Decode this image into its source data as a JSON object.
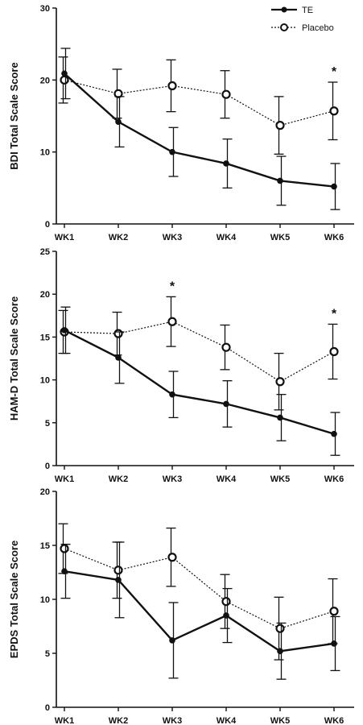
{
  "legend": {
    "position": "top-right",
    "series": [
      {
        "name": "TE",
        "style": "solid",
        "marker": "filled-circle",
        "color": "#111111"
      },
      {
        "name": "Placebo",
        "style": "dotted",
        "marker": "open-circle",
        "color": "#111111"
      }
    ]
  },
  "chart_data": [
    {
      "type": "line",
      "title": "",
      "xlabel": "",
      "ylabel": "BDI Total Scale Score",
      "categories": [
        "WK1",
        "WK2",
        "WK3",
        "WK4",
        "WK5",
        "WK6"
      ],
      "ylim": [
        0,
        30
      ],
      "yticks": [
        0,
        10,
        20,
        30
      ],
      "grid": false,
      "series": [
        {
          "name": "TE",
          "values": [
            20.9,
            14.2,
            10.0,
            8.4,
            6.0,
            5.2
          ],
          "err": [
            3.5,
            3.5,
            3.4,
            3.4,
            3.4,
            3.2
          ]
        },
        {
          "name": "Placebo",
          "values": [
            20.0,
            18.1,
            19.2,
            18.0,
            13.7,
            15.7
          ],
          "err": [
            3.2,
            3.4,
            3.6,
            3.3,
            4.0,
            4.0
          ]
        }
      ],
      "annotations": [
        {
          "category": "WK6",
          "text": "*"
        }
      ]
    },
    {
      "type": "line",
      "title": "",
      "xlabel": "",
      "ylabel": "HAM-D Total Scale Score",
      "categories": [
        "WK1",
        "WK2",
        "WK3",
        "WK4",
        "WK5",
        "WK6"
      ],
      "ylim": [
        0,
        25
      ],
      "yticks": [
        0,
        5,
        10,
        15,
        20,
        25
      ],
      "grid": false,
      "series": [
        {
          "name": "TE",
          "values": [
            15.8,
            12.6,
            8.3,
            7.2,
            5.6,
            3.7
          ],
          "err": [
            2.7,
            3.0,
            2.7,
            2.7,
            2.7,
            2.5
          ]
        },
        {
          "name": "Placebo",
          "values": [
            15.6,
            15.4,
            16.8,
            13.8,
            9.8,
            13.3
          ],
          "err": [
            2.5,
            2.5,
            2.9,
            2.6,
            3.3,
            3.2
          ]
        }
      ],
      "annotations": [
        {
          "category": "WK3",
          "text": "*"
        },
        {
          "category": "WK6",
          "text": "*"
        }
      ]
    },
    {
      "type": "line",
      "title": "",
      "xlabel": "",
      "ylabel": "EPDS Total Scale Score",
      "categories": [
        "WK1",
        "WK2",
        "WK3",
        "WK4",
        "WK5",
        "WK6"
      ],
      "ylim": [
        0,
        20
      ],
      "yticks": [
        0,
        5,
        10,
        15,
        20
      ],
      "grid": false,
      "series": [
        {
          "name": "TE",
          "values": [
            12.6,
            11.8,
            6.2,
            8.5,
            5.2,
            5.9
          ],
          "err": [
            2.5,
            3.5,
            3.5,
            2.5,
            2.6,
            2.5
          ]
        },
        {
          "name": "Placebo",
          "values": [
            14.7,
            12.7,
            13.9,
            9.8,
            7.3,
            8.9
          ],
          "err": [
            2.3,
            2.6,
            2.7,
            2.5,
            2.9,
            3.0
          ]
        }
      ],
      "annotations": []
    }
  ]
}
